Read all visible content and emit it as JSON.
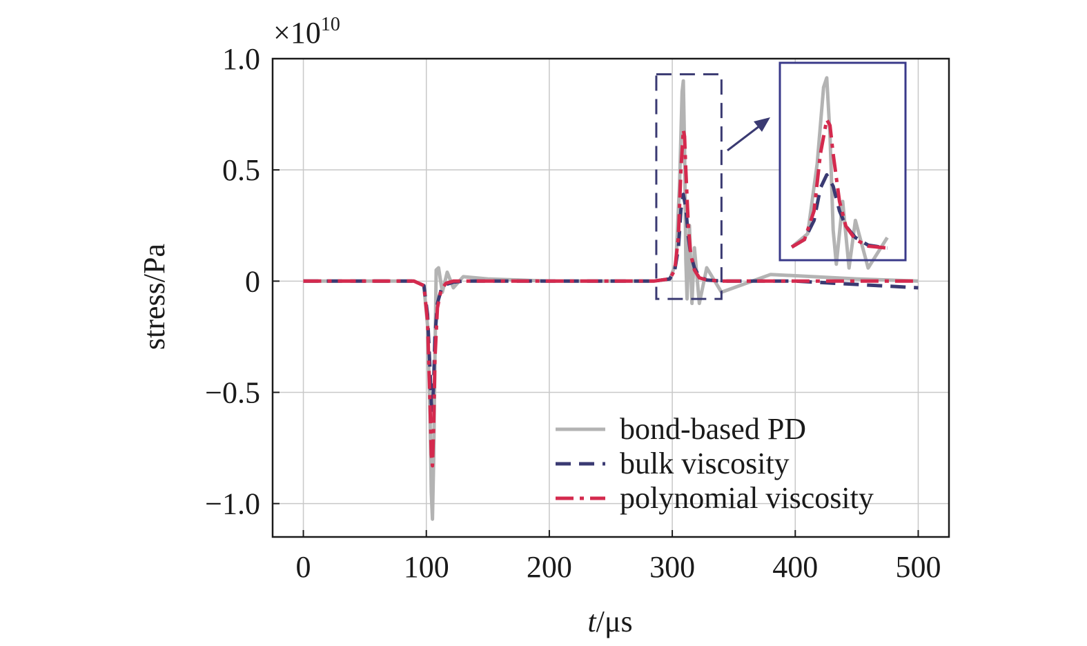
{
  "chart_data": {
    "type": "line",
    "xlabel": "t/μs",
    "xlabel_italic_part": "t",
    "xlabel_rest": "/μs",
    "ylabel": "stress/Pa",
    "y_multiplier_base": "×10",
    "y_multiplier_exp": "10",
    "xlim": [
      -25,
      525
    ],
    "ylim": [
      -1.15,
      1.0
    ],
    "x_ticks": [
      0,
      100,
      200,
      300,
      400,
      500
    ],
    "x_tick_labels": [
      "0",
      "100",
      "200",
      "300",
      "400",
      "500"
    ],
    "y_ticks": [
      1.0,
      0.5,
      0,
      -0.5,
      -1.0
    ],
    "y_tick_labels": [
      "1.0",
      "0.5",
      "0",
      "−0.5",
      "−1.0"
    ],
    "grid": true,
    "legend_position": "bottom-right",
    "series": [
      {
        "name": "bond-based PD",
        "color": "#b3b3b3",
        "style": "solid",
        "x": [
          0,
          90,
          98,
          101,
          103,
          104,
          105,
          106,
          107,
          108,
          110,
          113,
          117,
          122,
          130,
          150,
          200,
          285,
          298,
          303,
          306,
          308,
          309,
          310,
          311,
          312,
          314,
          316,
          318,
          322,
          328,
          340,
          380,
          450,
          500
        ],
        "y": [
          0,
          0,
          -0.02,
          -0.2,
          -0.6,
          -0.95,
          -1.07,
          -0.8,
          -0.35,
          0.05,
          0.06,
          -0.05,
          0.04,
          -0.03,
          0.02,
          0.01,
          0,
          0,
          0.01,
          0.08,
          0.45,
          0.85,
          0.9,
          0.6,
          0.1,
          -0.08,
          0.25,
          -0.1,
          0.15,
          -0.1,
          0.06,
          -0.05,
          0.03,
          0.01,
          0
        ]
      },
      {
        "name": "bulk viscosity",
        "color": "#3a3a72",
        "style": "dashed",
        "x": [
          0,
          90,
          98,
          101,
          103,
          104,
          105,
          106,
          107,
          109,
          112,
          116,
          122,
          130,
          150,
          200,
          285,
          298,
          302,
          305,
          307,
          309,
          311,
          313,
          315,
          318,
          322,
          328,
          340,
          400,
          500
        ],
        "y": [
          0,
          0,
          -0.02,
          -0.15,
          -0.4,
          -0.55,
          -0.58,
          -0.45,
          -0.25,
          -0.1,
          -0.04,
          -0.015,
          -0.005,
          0,
          0,
          0,
          0,
          0.01,
          0.05,
          0.15,
          0.32,
          0.39,
          0.33,
          0.2,
          0.12,
          0.06,
          0.02,
          0.005,
          0,
          0,
          -0.03
        ]
      },
      {
        "name": "polynomial viscosity",
        "color": "#d42a4e",
        "style": "dashdot",
        "x": [
          0,
          90,
          98,
          101,
          103,
          104,
          105,
          106,
          107,
          109,
          112,
          116,
          122,
          130,
          150,
          200,
          285,
          298,
          302,
          305,
          307,
          309,
          310,
          311,
          313,
          315,
          318,
          322,
          328,
          340,
          400,
          500
        ],
        "y": [
          0,
          0,
          -0.02,
          -0.18,
          -0.55,
          -0.78,
          -0.83,
          -0.65,
          -0.35,
          -0.12,
          -0.04,
          -0.01,
          0,
          0,
          0,
          0,
          0,
          0.01,
          0.05,
          0.2,
          0.5,
          0.68,
          0.65,
          0.5,
          0.25,
          0.12,
          0.05,
          0.015,
          0.005,
          0,
          0,
          0
        ]
      }
    ]
  }
}
